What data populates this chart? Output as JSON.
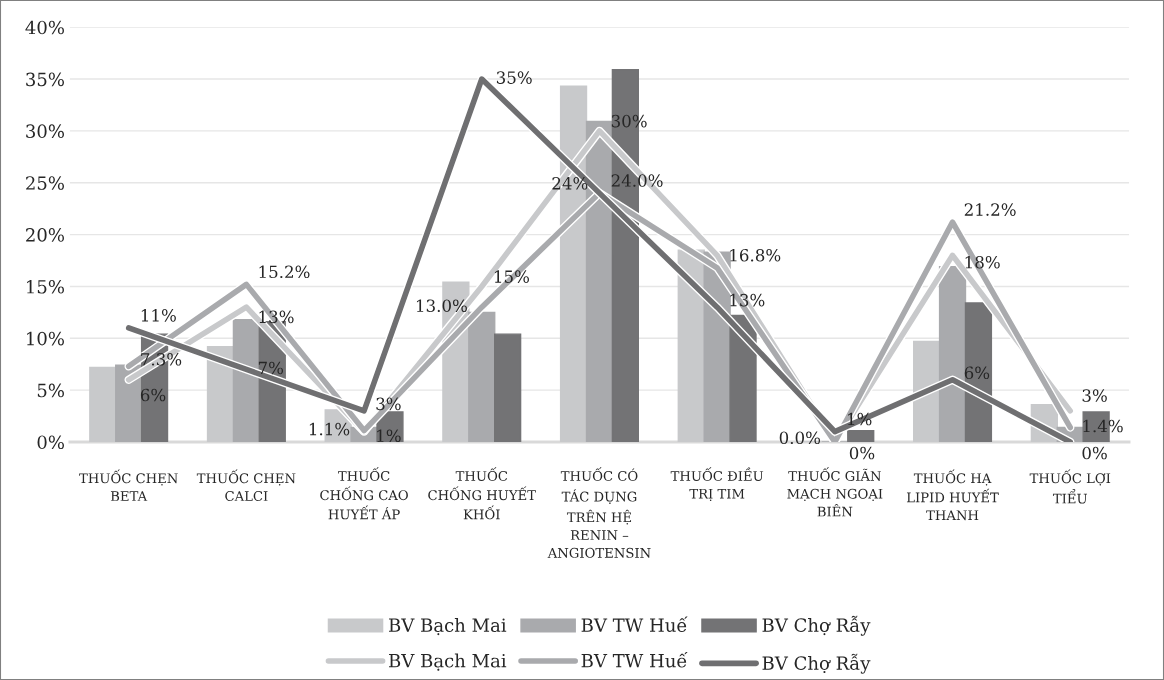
{
  "chart_data": {
    "type": "bar",
    "categories": [
      "THUỐC CHẸN\nBETA",
      "THUỐC CHẸN\nCALCI",
      "THUỐC\nCHỐNG CAO\nHUYẾT ÁP",
      "THUỐC\nCHỐNG HUYẾT\nKHỐI",
      "THUỐC CÓ\nTÁC DỤNG\nTRÊN HỆ\nRENIN –\nANGIOTENSIN",
      "THUỐC ĐIỀU\nTRỊ TIM",
      "THUỐC GIÃN\nMẠCH NGOẠI\nBIÊN",
      "THUỐC HẠ\nLIPID HUYẾT\nTHANH",
      "THUỐC LỢI\nTIỂU"
    ],
    "series": [
      {
        "name": "BV Bạch Mai",
        "color": "#c8c9cb",
        "values": [
          7.2,
          9.2,
          3.1,
          15.4,
          34.3,
          18.5,
          0,
          9.7,
          3.6
        ]
      },
      {
        "name": "BV TW Huế",
        "color": "#a9aaad",
        "values": [
          7.4,
          11.8,
          1.4,
          12.5,
          30.9,
          18.3,
          0,
          16.9,
          1.4
        ]
      },
      {
        "name": "BV Chợ Rẫy",
        "color": "#737375",
        "values": [
          10.4,
          11.6,
          2.9,
          10.4,
          35.9,
          12.2,
          1.1,
          13.4,
          2.9
        ]
      },
      {
        "type": "line",
        "name": "BV Bạch Mai",
        "color": "#c8c9cb",
        "values": [
          6,
          13,
          1,
          15,
          30,
          18,
          0,
          18,
          3
        ],
        "value_labels": [
          "6%",
          "13%",
          "1%",
          "15%",
          "30%",
          null,
          "0%",
          "18%",
          "3%"
        ]
      },
      {
        "type": "line",
        "name": "BV TW Huế",
        "color": "#a9aaad",
        "values": [
          7.3,
          15.2,
          1.1,
          13.0,
          24.0,
          16.8,
          0.0,
          21.2,
          1.4
        ],
        "value_labels": [
          "7.3%",
          "15.2%",
          "1.1%",
          "13.0%",
          "24.0%",
          "16.8%",
          "0.0%",
          "21.2%",
          "1.4%"
        ]
      },
      {
        "type": "line",
        "name": "BV Chợ Rẫy",
        "color": "#6f6f71",
        "values": [
          11,
          7,
          3,
          35,
          24,
          13,
          1,
          6,
          0
        ],
        "value_labels": [
          "11%",
          "7%",
          "3%",
          "35%",
          "24%",
          "13%",
          "1%",
          "6%",
          "0%"
        ]
      }
    ],
    "ylim": [
      0,
      40
    ],
    "yticks": [
      {
        "value": 0,
        "label": "0%"
      },
      {
        "value": 5,
        "label": "5%"
      },
      {
        "value": 10,
        "label": "10%"
      },
      {
        "value": 15,
        "label": "15%"
      },
      {
        "value": 20,
        "label": "20%"
      },
      {
        "value": 25,
        "label": "25%"
      },
      {
        "value": 30,
        "label": "30%"
      },
      {
        "value": 35,
        "label": "35%"
      },
      {
        "value": 40,
        "label": "40%"
      }
    ],
    "grid": "y",
    "legend": "bottom"
  }
}
